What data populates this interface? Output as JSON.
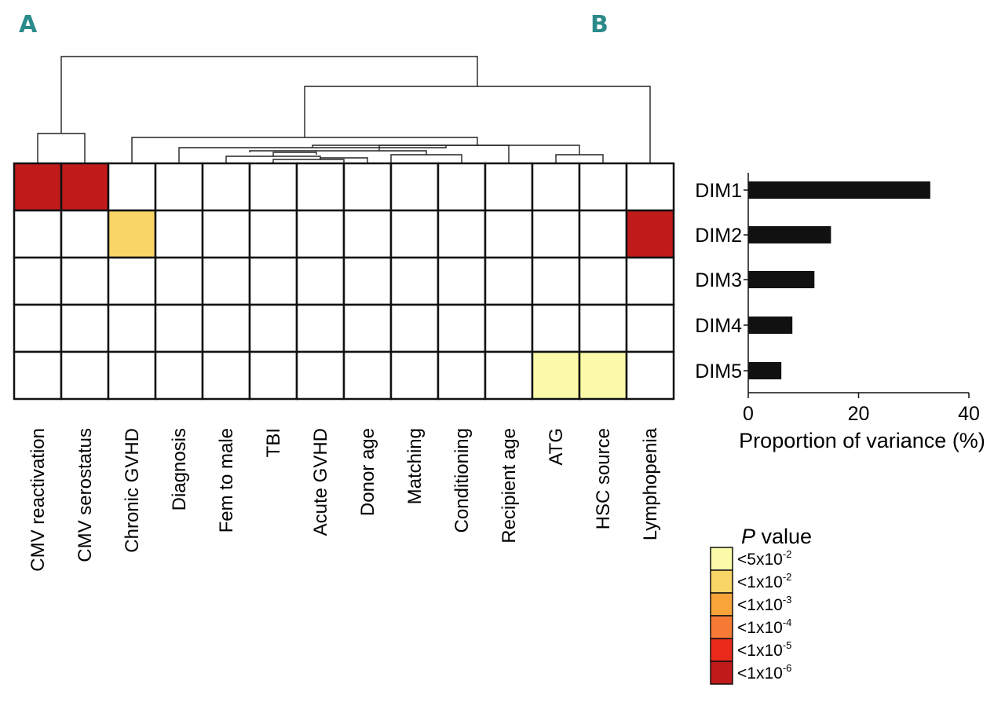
{
  "panels": {
    "a": "A",
    "b": "B"
  },
  "colors": {
    "lt5e2": "#fafaa8",
    "lt1e2": "#f9d466",
    "lt1e3": "#f8a43a",
    "lt1e4": "#f67a34",
    "lt1e5": "#ea2a1a",
    "lt1e6": "#c01a1a",
    "bar": "#111111",
    "grid": "#111111"
  },
  "chart_data": [
    {
      "type": "heatmap",
      "title": "",
      "columns": [
        "CMV reactivation",
        "CMV serostatus",
        "Chronic GVHD",
        "Diagnosis",
        "Fem to male",
        "TBI",
        "Acute GVHD",
        "Donor age",
        "Matching",
        "Conditioning",
        "Recipient age",
        "ATG",
        "HSC source",
        "Lymphopenia"
      ],
      "rows": [
        "DIM1",
        "DIM2",
        "DIM3",
        "DIM4",
        "DIM5"
      ],
      "cells": [
        [
          6,
          6,
          0,
          0,
          0,
          0,
          0,
          0,
          0,
          0,
          0,
          0,
          0,
          0
        ],
        [
          0,
          0,
          2,
          0,
          0,
          0,
          0,
          0,
          0,
          0,
          0,
          0,
          0,
          6
        ],
        [
          0,
          0,
          0,
          0,
          0,
          0,
          0,
          0,
          0,
          0,
          0,
          0,
          0,
          0
        ],
        [
          0,
          0,
          0,
          0,
          0,
          0,
          0,
          0,
          0,
          0,
          0,
          0,
          0,
          0
        ],
        [
          0,
          0,
          0,
          0,
          0,
          0,
          0,
          0,
          0,
          0,
          0,
          1,
          1,
          0
        ]
      ],
      "cell_level_meaning": "0 = not significant, 1 = <5x10-2, 2 = <1x10-2, 3 = <1x10-3, 4 = <1x10-4, 5 = <1x10-5, 6 = <1x10-6",
      "legend": {
        "title_italic": "P",
        "title_rest": " value",
        "entries": [
          {
            "level": 1,
            "base": "<5x10",
            "exp": "-2"
          },
          {
            "level": 2,
            "base": "<1x10",
            "exp": "-2"
          },
          {
            "level": 3,
            "base": "<1x10",
            "exp": "-3"
          },
          {
            "level": 4,
            "base": "<1x10",
            "exp": "-4"
          },
          {
            "level": 5,
            "base": "<1x10",
            "exp": "-5"
          },
          {
            "level": 6,
            "base": "<1x10",
            "exp": "-6"
          }
        ]
      },
      "dendrogram": "hierarchical clustering of columns (shown above heatmap)"
    },
    {
      "type": "bar",
      "orientation": "horizontal",
      "title": "",
      "categories": [
        "DIM1",
        "DIM2",
        "DIM3",
        "DIM4",
        "DIM5"
      ],
      "values": [
        33,
        15,
        12,
        8,
        6
      ],
      "xlabel": "Proportion of variance (%)",
      "ylabel": "",
      "xlim": [
        0,
        40
      ],
      "xticks": [
        0,
        20,
        40
      ]
    }
  ]
}
